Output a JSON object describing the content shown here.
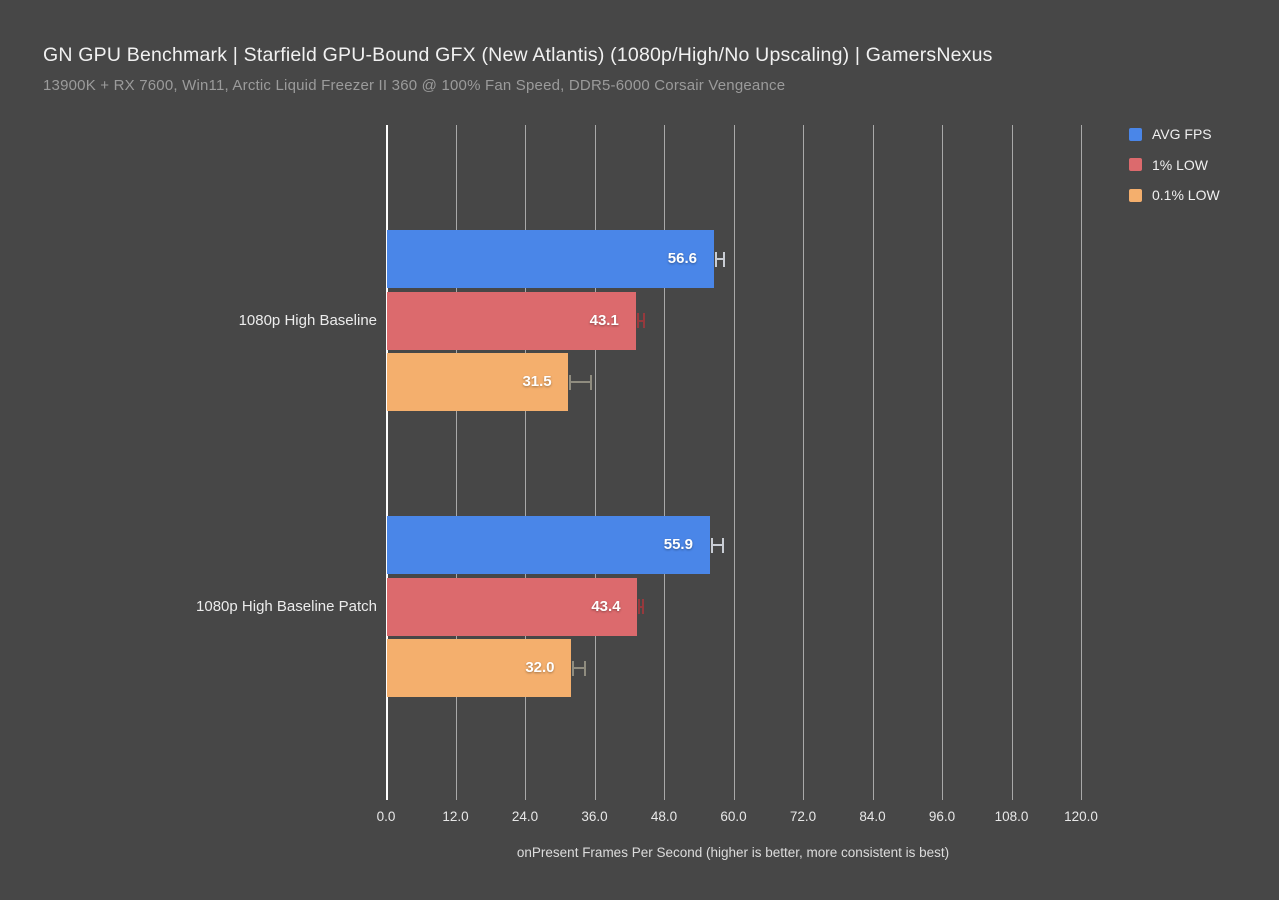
{
  "header": {
    "title": "GN GPU Benchmark | Starfield GPU-Bound GFX (New Atlantis) (1080p/High/No Upscaling) | GamersNexus",
    "subtitle": "13900K + RX 7600, Win11, Arctic Liquid Freezer II 360 @ 100% Fan Speed, DDR5-6000 Corsair Vengeance"
  },
  "colors": {
    "background": "#474747",
    "avg_fps": "#4A86E8",
    "one_percent_low": "#DC6A6D",
    "point_one_percent_low": "#F4AF6D",
    "gridline": "#A9A9A9",
    "zero_axis_line": "#FDFDFD",
    "title_text": "#F1F1F1",
    "subtitle_text": "#9B9B9B",
    "value_label_text": "#FFFFFF"
  },
  "legend": {
    "position": "top-right",
    "items": [
      {
        "label": "AVG FPS",
        "color": "#4A86E8"
      },
      {
        "label": "1% LOW",
        "color": "#DC6A6D"
      },
      {
        "label": "0.1% LOW",
        "color": "#F4AF6D"
      }
    ]
  },
  "chart_data": {
    "type": "bar",
    "orientation": "horizontal",
    "title": "GN GPU Benchmark | Starfield GPU-Bound GFX (New Atlantis) (1080p/High/No Upscaling) | GamersNexus",
    "subtitle": "13900K + RX 7600, Win11, Arctic Liquid Freezer II 360 @ 100% Fan Speed, DDR5-6000 Corsair Vengeance",
    "categories": [
      "1080p High Baseline",
      "1080p High Baseline Patch"
    ],
    "series": [
      {
        "name": "AVG FPS",
        "color": "#4A86E8",
        "values": [
          56.6,
          55.9
        ],
        "error_to": [
          58.6,
          58.3
        ],
        "whisker_color": "#C9CDD4"
      },
      {
        "name": "1% LOW",
        "color": "#DC6A6D",
        "values": [
          43.1,
          43.4
        ],
        "error_to": [
          44.8,
          44.6
        ],
        "whisker_color": "#96393D"
      },
      {
        "name": "0.1% LOW",
        "color": "#F4AF6D",
        "values": [
          31.5,
          32.0
        ],
        "error_to": [
          35.6,
          34.6
        ],
        "whisker_color": "#8F8C7F"
      }
    ],
    "value_label_format": "one_decimal",
    "xlabel": "onPresent Frames Per Second (higher is better, more consistent is best)",
    "x_ticks": [
      "0.0",
      "12.0",
      "24.0",
      "36.0",
      "48.0",
      "60.0",
      "72.0",
      "84.0",
      "96.0",
      "108.0",
      "120.0"
    ],
    "xlim": [
      0,
      120
    ],
    "grid": true,
    "legend_position": "top-right"
  }
}
